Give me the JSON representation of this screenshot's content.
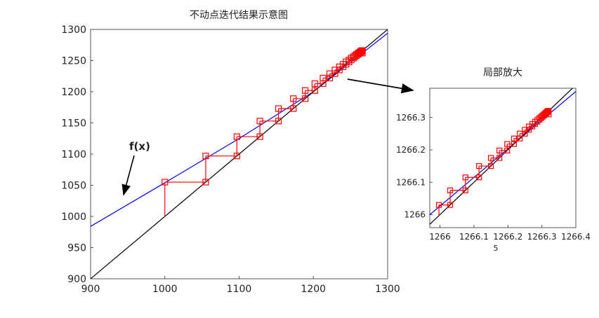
{
  "chart_data": [
    {
      "type": "line",
      "title": "不动点迭代结果示意图",
      "xlabel": "",
      "ylabel": "",
      "xlim": [
        900,
        1300
      ],
      "ylim": [
        900,
        1300
      ],
      "xticks": [
        "900",
        "1000",
        "1100",
        "1200",
        "1300"
      ],
      "yticks": [
        "900",
        "950",
        "1000",
        "1050",
        "1100",
        "1150",
        "1200",
        "1250",
        "1300"
      ],
      "grid": false,
      "series": [
        {
          "color": "#0000ff",
          "function_points": [
            [
              900,
              984
            ],
            [
              1000,
              1054
            ],
            [
              1100,
              1125
            ],
            [
              1200,
              1200
            ],
            [
              1300,
              1294
            ]
          ]
        },
        {
          "color": "#000000",
          "function_points": [
            [
              900,
              900
            ],
            [
              1300,
              1300
            ]
          ]
        }
      ],
      "iterates": [
        1000,
        1055,
        1097,
        1128,
        1153,
        1173,
        1189,
        1202,
        1213,
        1222,
        1229,
        1235,
        1240,
        1244,
        1248,
        1251,
        1254,
        1256,
        1258,
        1260,
        1261,
        1262,
        1263,
        1264,
        1265,
        1266
      ],
      "iterate_color": "#ff0000",
      "annotation": "f(x)"
    },
    {
      "type": "line",
      "title": "局部放大",
      "xlabel": "",
      "ylabel": "",
      "xlim": [
        1265.97,
        1266.4
      ],
      "ylim": [
        1265.96,
        1266.39
      ],
      "xticks": [
        "1266",
        "1266.1",
        "1266.2",
        "1266.3",
        "1266.4"
      ],
      "yticks": [
        "1266",
        "1266.1",
        "1266.2",
        "1266.3"
      ],
      "grid": false,
      "series": [
        {
          "color": "#0000ff",
          "function_points": [
            [
              1265.97,
              1266.0
            ],
            [
              1266.4,
              1266.38
            ]
          ]
        },
        {
          "color": "#000000",
          "function_points": [
            [
              1265.97,
              1265.97
            ],
            [
              1266.4,
              1266.4
            ]
          ]
        }
      ],
      "iterates": [
        1265.997,
        1266.03,
        1266.075,
        1266.115,
        1266.15,
        1266.175,
        1266.198,
        1266.218,
        1266.235,
        1266.25,
        1266.262,
        1266.272,
        1266.28,
        1266.287,
        1266.293,
        1266.298,
        1266.302,
        1266.306,
        1266.309,
        1266.312,
        1266.314,
        1266.316,
        1266.318,
        1266.32
      ],
      "iterate_color": "#ff0000",
      "stray_label": "5"
    }
  ]
}
